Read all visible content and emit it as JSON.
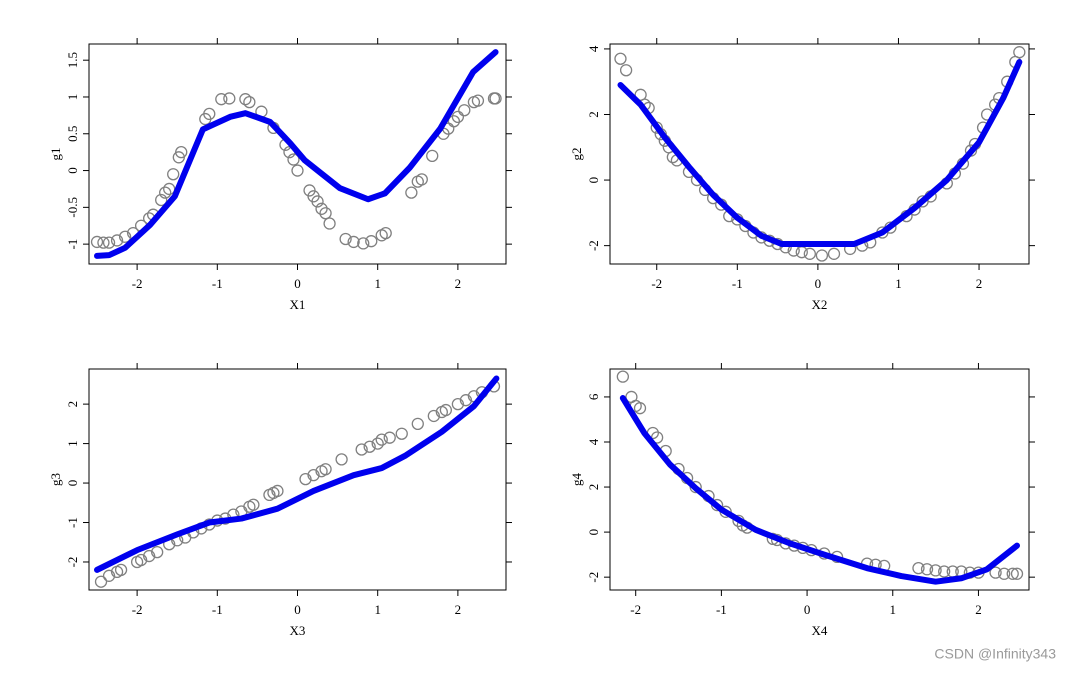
{
  "chart_data": [
    {
      "type": "scatter",
      "xlabel": "X1",
      "ylabel": "g1",
      "xlim": [
        -2.6,
        2.6
      ],
      "ylim": [
        -1.27,
        1.72
      ],
      "xticks": [
        -2,
        -1,
        0,
        1,
        2
      ],
      "yticks": [
        -1,
        -0.5,
        0,
        0.5,
        1,
        1.5
      ],
      "series": [
        {
          "type": "scatter",
          "color": "#808080",
          "x": [
            -2.5,
            -2.42,
            -2.35,
            -2.25,
            -2.15,
            -2.05,
            -1.95,
            -1.85,
            -1.8,
            -1.7,
            -1.65,
            -1.6,
            -1.55,
            -1.48,
            -1.45,
            -1.15,
            -1.1,
            -0.95,
            -0.85,
            -0.65,
            -0.6,
            -0.45,
            -0.3,
            -0.15,
            -0.1,
            -0.05,
            0,
            0.15,
            0.2,
            0.25,
            0.3,
            0.35,
            0.4,
            0.6,
            0.7,
            0.82,
            0.92,
            1.05,
            1.1,
            1.42,
            1.5,
            1.55,
            1.68,
            1.82,
            1.88,
            1.95,
            2,
            2.08,
            2.2,
            2.25,
            2.45,
            2.47
          ],
          "values": [
            -0.97,
            -0.98,
            -0.98,
            -0.95,
            -0.9,
            -0.85,
            -0.75,
            -0.65,
            -0.6,
            -0.4,
            -0.3,
            -0.25,
            -0.05,
            0.18,
            0.25,
            0.7,
            0.77,
            0.97,
            0.98,
            0.97,
            0.93,
            0.8,
            0.58,
            0.35,
            0.25,
            0.15,
            0,
            -0.27,
            -0.35,
            -0.42,
            -0.52,
            -0.58,
            -0.72,
            -0.93,
            -0.97,
            -0.99,
            -0.96,
            -0.88,
            -0.85,
            -0.3,
            -0.15,
            -0.12,
            0.2,
            0.5,
            0.57,
            0.67,
            0.73,
            0.82,
            0.93,
            0.95,
            0.98,
            0.98
          ]
        },
        {
          "type": "line",
          "color": "#0000ee",
          "x": [
            -2.5,
            -2.35,
            -2.15,
            -1.84,
            -1.53,
            -1.18,
            -0.84,
            -0.65,
            -0.34,
            -0.09,
            0.09,
            0.53,
            0.88,
            1.09,
            1.4,
            1.78,
            2.19,
            2.47
          ],
          "values": [
            -1.16,
            -1.15,
            -1.05,
            -0.74,
            -0.35,
            0.56,
            0.73,
            0.78,
            0.66,
            0.37,
            0.14,
            -0.24,
            -0.39,
            -0.31,
            0.04,
            0.57,
            1.34,
            1.61
          ]
        }
      ]
    },
    {
      "type": "scatter",
      "xlabel": "X2",
      "ylabel": "g2",
      "xlim": [
        -2.58,
        2.62
      ],
      "ylim": [
        -2.56,
        4.15
      ],
      "xticks": [
        -2,
        -1,
        0,
        1,
        2
      ],
      "yticks": [
        -2,
        0,
        2,
        4
      ],
      "series": [
        {
          "type": "scatter",
          "color": "#808080",
          "x": [
            -2.45,
            -2.38,
            -2.2,
            -2.15,
            -2.1,
            -2,
            -1.95,
            -1.9,
            -1.85,
            -1.8,
            -1.75,
            -1.6,
            -1.5,
            -1.4,
            -1.3,
            -1.2,
            -1.1,
            -1,
            -0.9,
            -0.8,
            -0.7,
            -0.6,
            -0.5,
            -0.4,
            -0.3,
            -0.2,
            -0.1,
            0.05,
            0.2,
            0.4,
            0.55,
            0.65,
            0.8,
            0.9,
            1.1,
            1.2,
            1.3,
            1.4,
            1.6,
            1.7,
            1.8,
            1.9,
            1.95,
            2.05,
            2.1,
            2.2,
            2.25,
            2.35,
            2.45,
            2.5
          ],
          "values": [
            3.7,
            3.35,
            2.6,
            2.3,
            2.2,
            1.6,
            1.4,
            1.2,
            1,
            0.7,
            0.6,
            0.25,
            0,
            -0.3,
            -0.55,
            -0.75,
            -1.1,
            -1.2,
            -1.4,
            -1.6,
            -1.75,
            -1.85,
            -1.95,
            -2.05,
            -2.15,
            -2.2,
            -2.25,
            -2.3,
            -2.25,
            -2.1,
            -2,
            -1.9,
            -1.6,
            -1.45,
            -1.1,
            -0.9,
            -0.65,
            -0.5,
            -0.1,
            0.2,
            0.5,
            0.9,
            1.1,
            1.6,
            2,
            2.3,
            2.5,
            3,
            3.6,
            3.9
          ]
        },
        {
          "type": "line",
          "color": "#0000ee",
          "x": [
            -2.45,
            -2.2,
            -1.9,
            -1.6,
            -1.3,
            -1,
            -0.7,
            -0.45,
            0,
            0.45,
            0.8,
            1.2,
            1.6,
            2,
            2.3,
            2.5
          ],
          "values": [
            2.9,
            2.3,
            1.3,
            0.4,
            -0.45,
            -1.15,
            -1.7,
            -1.95,
            -1.95,
            -1.95,
            -1.6,
            -0.85,
            0,
            1.15,
            2.5,
            3.6
          ]
        }
      ]
    },
    {
      "type": "scatter",
      "xlabel": "X3",
      "ylabel": "g3",
      "xlim": [
        -2.6,
        2.6
      ],
      "ylim": [
        -2.71,
        2.89
      ],
      "xticks": [
        -2,
        -1,
        0,
        1,
        2
      ],
      "yticks": [
        -2,
        -1,
        0,
        1,
        2
      ],
      "series": [
        {
          "type": "scatter",
          "color": "#808080",
          "x": [
            -2.45,
            -2.35,
            -2.25,
            -2.2,
            -2,
            -1.95,
            -1.85,
            -1.75,
            -1.6,
            -1.5,
            -1.4,
            -1.3,
            -1.2,
            -1.1,
            -1,
            -0.9,
            -0.8,
            -0.7,
            -0.6,
            -0.55,
            -0.35,
            -0.3,
            -0.25,
            0.1,
            0.2,
            0.3,
            0.35,
            0.55,
            0.8,
            0.9,
            1,
            1.05,
            1.15,
            1.3,
            1.5,
            1.7,
            1.8,
            1.85,
            2,
            2.1,
            2.2,
            2.3,
            2.45
          ],
          "values": [
            -2.5,
            -2.35,
            -2.25,
            -2.2,
            -2,
            -1.95,
            -1.85,
            -1.75,
            -1.55,
            -1.45,
            -1.38,
            -1.25,
            -1.15,
            -1.05,
            -0.95,
            -0.9,
            -0.8,
            -0.72,
            -0.6,
            -0.55,
            -0.3,
            -0.25,
            -0.2,
            0.1,
            0.2,
            0.3,
            0.35,
            0.6,
            0.85,
            0.92,
            1,
            1.1,
            1.15,
            1.25,
            1.5,
            1.7,
            1.8,
            1.85,
            2,
            2.1,
            2.2,
            2.3,
            2.45
          ]
        },
        {
          "type": "line",
          "color": "#0000ee",
          "x": [
            -2.5,
            -2,
            -1.5,
            -1.1,
            -0.7,
            -0.25,
            0.2,
            0.7,
            1.05,
            1.35,
            1.8,
            2.2,
            2.48
          ],
          "values": [
            -2.2,
            -1.7,
            -1.3,
            -1,
            -0.9,
            -0.65,
            -0.2,
            0.2,
            0.38,
            0.7,
            1.3,
            1.95,
            2.65
          ]
        }
      ]
    },
    {
      "type": "scatter",
      "xlabel": "X4",
      "ylabel": "g4",
      "xlim": [
        -2.3,
        2.59
      ],
      "ylim": [
        -2.57,
        7.24
      ],
      "xticks": [
        -2,
        -1,
        0,
        1,
        2
      ],
      "yticks": [
        -2,
        0,
        2,
        4,
        6
      ],
      "series": [
        {
          "type": "scatter",
          "color": "#808080",
          "x": [
            -2.15,
            -2.05,
            -2,
            -1.95,
            -1.8,
            -1.75,
            -1.65,
            -1.5,
            -1.4,
            -1.3,
            -1.15,
            -1.05,
            -0.95,
            -0.8,
            -0.75,
            -0.7,
            -0.4,
            -0.35,
            -0.25,
            -0.15,
            -0.05,
            0.05,
            0.2,
            0.35,
            0.7,
            0.8,
            0.9,
            1.3,
            1.4,
            1.5,
            1.6,
            1.7,
            1.8,
            1.9,
            2,
            2.2,
            2.3,
            2.4,
            2.45
          ],
          "values": [
            6.9,
            6,
            5.6,
            5.5,
            4.4,
            4.2,
            3.6,
            2.8,
            2.4,
            2,
            1.6,
            1.2,
            0.9,
            0.5,
            0.3,
            0.2,
            -0.3,
            -0.35,
            -0.5,
            -0.6,
            -0.7,
            -0.8,
            -0.95,
            -1.1,
            -1.4,
            -1.45,
            -1.5,
            -1.6,
            -1.65,
            -1.7,
            -1.75,
            -1.75,
            -1.75,
            -1.8,
            -1.8,
            -1.8,
            -1.85,
            -1.85,
            -1.85
          ]
        },
        {
          "type": "line",
          "color": "#0000ee",
          "x": [
            -2.15,
            -1.9,
            -1.6,
            -1.3,
            -1,
            -0.6,
            -0.2,
            0.2,
            0.7,
            1.1,
            1.5,
            1.8,
            2.1,
            2.45
          ],
          "values": [
            5.95,
            4.4,
            3,
            1.95,
            1,
            0.1,
            -0.5,
            -1,
            -1.6,
            -1.95,
            -2.2,
            -2.05,
            -1.65,
            -0.6
          ]
        }
      ]
    }
  ],
  "watermark": "CSDN @Infinity343"
}
